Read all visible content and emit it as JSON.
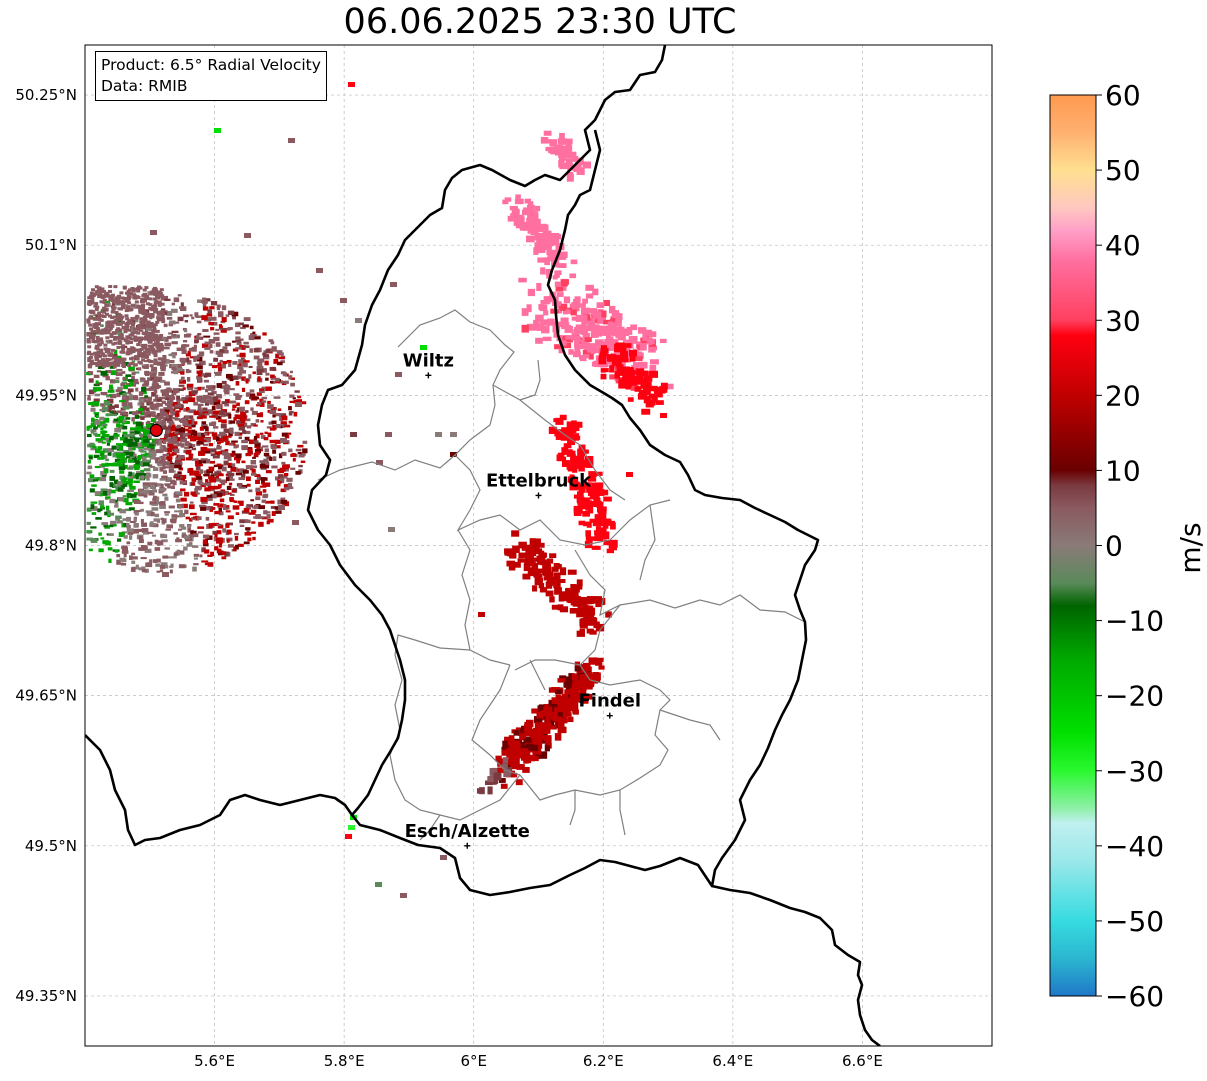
{
  "title": "06.06.2025 23:30 UTC",
  "info": {
    "product_line": "Product: 6.5° Radial Velocity",
    "data_line": "Data: RMIB"
  },
  "axes": {
    "x_ticks": [
      "5.6°E",
      "5.8°E",
      "6°E",
      "6.2°E",
      "6.4°E",
      "6.6°E"
    ],
    "y_ticks": [
      "50.25°N",
      "50.1°N",
      "49.95°N",
      "49.8°N",
      "49.65°N",
      "49.5°N",
      "49.35°N"
    ],
    "lon_range": [
      5.4,
      6.8
    ],
    "lat_range": [
      49.3,
      50.3
    ],
    "grid": true
  },
  "cities": [
    {
      "name": "Wiltz",
      "lon": 5.93,
      "lat": 49.97
    },
    {
      "name": "Ettelbruck",
      "lon": 6.1,
      "lat": 49.85
    },
    {
      "name": "Findel",
      "lon": 6.21,
      "lat": 49.63
    },
    {
      "name": "Esch/Alzette",
      "lon": 5.99,
      "lat": 49.5
    }
  ],
  "radar_site": {
    "lon": 5.51,
    "lat": 49.915,
    "color": "#e0000a"
  },
  "colorbar": {
    "label": "m/s",
    "min": -60,
    "max": 60,
    "ticks": [
      "60",
      "50",
      "40",
      "30",
      "20",
      "10",
      "0",
      "−10",
      "−20",
      "−30",
      "−40",
      "−50",
      "−60"
    ],
    "stops": [
      {
        "v": -60,
        "c": "#1f78c8"
      },
      {
        "v": -55,
        "c": "#2bb6d0"
      },
      {
        "v": -50,
        "c": "#36dbe0"
      },
      {
        "v": -42,
        "c": "#9be8ea"
      },
      {
        "v": -37,
        "c": "#c0f0f0"
      },
      {
        "v": -35,
        "c": "#8ff0a8"
      },
      {
        "v": -30,
        "c": "#2af830"
      },
      {
        "v": -25,
        "c": "#00e000"
      },
      {
        "v": -15,
        "c": "#00a800"
      },
      {
        "v": -8,
        "c": "#006400"
      },
      {
        "v": -5,
        "c": "#5a8a5a"
      },
      {
        "v": 0,
        "c": "#8a7a78"
      },
      {
        "v": 5,
        "c": "#8a5a60"
      },
      {
        "v": 8,
        "c": "#7a3a40"
      },
      {
        "v": 10,
        "c": "#6a0000"
      },
      {
        "v": 20,
        "c": "#c00000"
      },
      {
        "v": 28,
        "c": "#ff0010"
      },
      {
        "v": 30,
        "c": "#ff4060"
      },
      {
        "v": 38,
        "c": "#ff70a0"
      },
      {
        "v": 42,
        "c": "#ffa0c8"
      },
      {
        "v": 45,
        "c": "#ffc8c0"
      },
      {
        "v": 50,
        "c": "#ffe090"
      },
      {
        "v": 55,
        "c": "#ffb070"
      },
      {
        "v": 60,
        "c": "#ff9a50"
      }
    ]
  },
  "colors": {
    "border": "#000000",
    "canton_lines": "#808080",
    "grid": "#bbbbbb"
  }
}
